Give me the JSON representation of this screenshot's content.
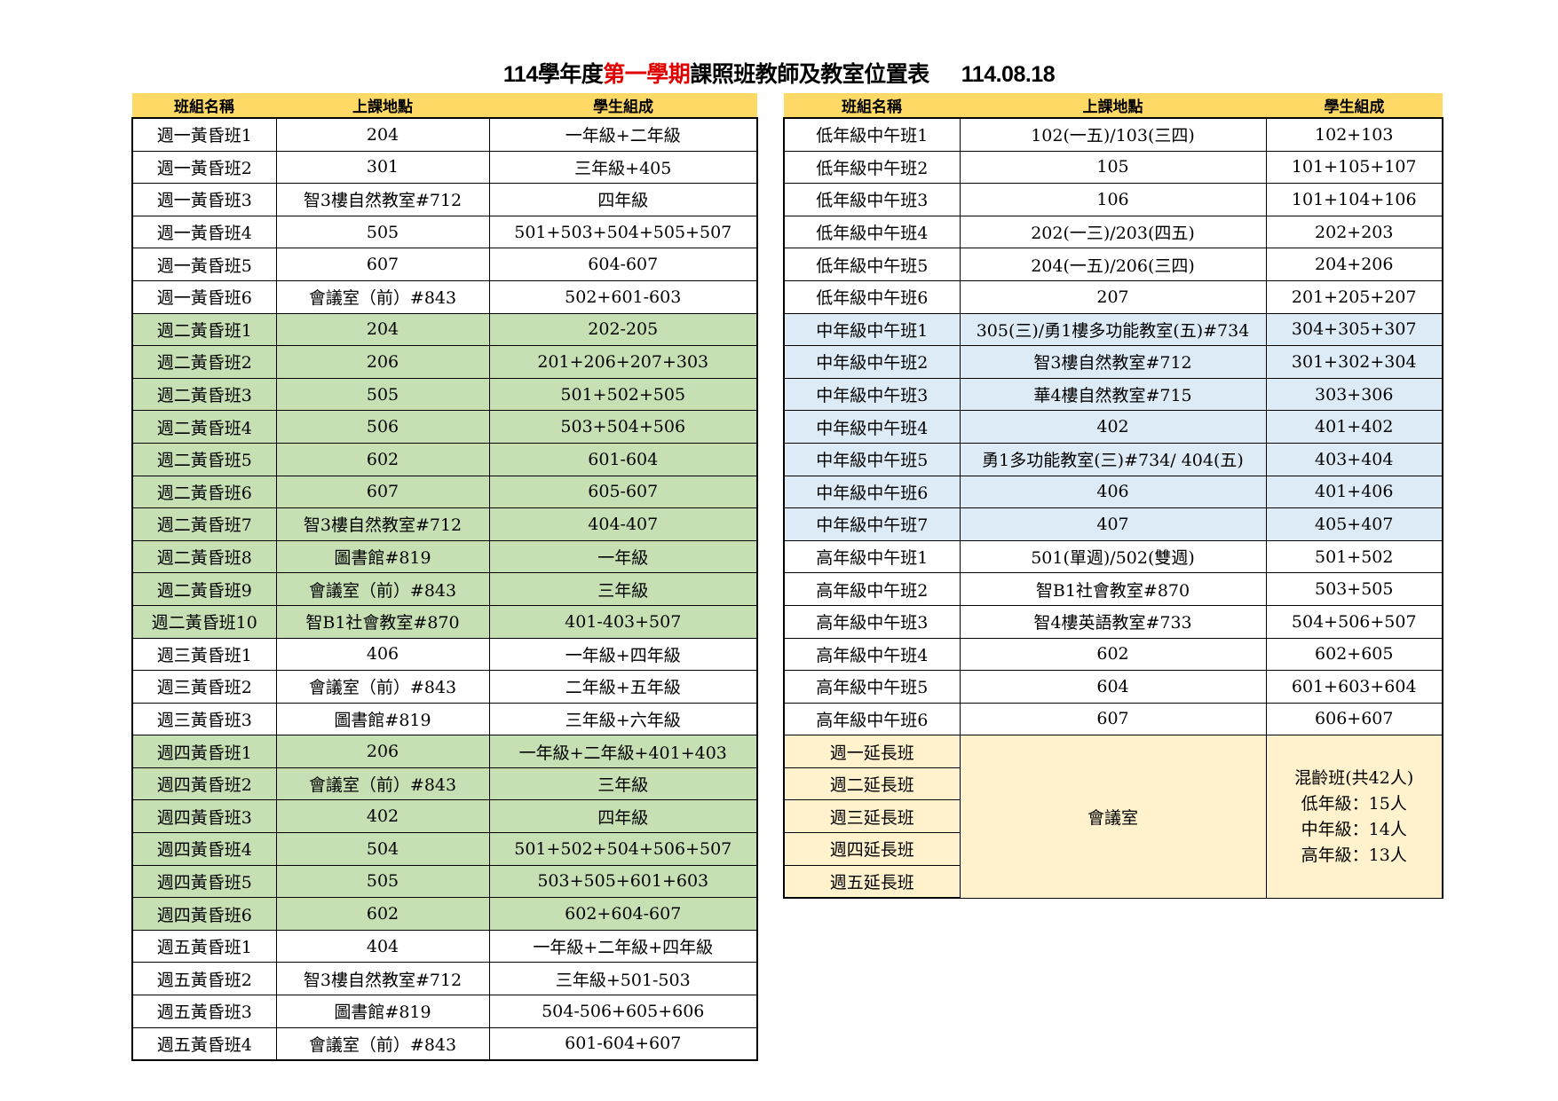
{
  "title": {
    "prefix": "114學年度",
    "highlight": "第一學期",
    "suffix": "課照班教師及教室位置表",
    "date": "114.08.18"
  },
  "colors": {
    "header": "#FFD966",
    "white": "#FFFFFF",
    "green": "#C6E0B4",
    "blue": "#DDEBF7",
    "cream": "#FFF2CC",
    "highlight_text": "#E00000"
  },
  "left_table": {
    "headers": [
      "班組名稱",
      "上課地點",
      "學生組成"
    ],
    "rows": [
      {
        "fill": "white",
        "cells": [
          "週一黃昏班1",
          "204",
          "一年級+二年級"
        ]
      },
      {
        "fill": "white",
        "cells": [
          "週一黃昏班2",
          "301",
          "三年級+405"
        ]
      },
      {
        "fill": "white",
        "cells": [
          "週一黃昏班3",
          "智3樓自然教室#712",
          "四年級"
        ]
      },
      {
        "fill": "white",
        "cells": [
          "週一黃昏班4",
          "505",
          "501+503+504+505+507"
        ]
      },
      {
        "fill": "white",
        "cells": [
          "週一黃昏班5",
          "607",
          "604-607"
        ]
      },
      {
        "fill": "white",
        "cells": [
          "週一黃昏班6",
          "會議室（前）#843",
          "502+601-603"
        ]
      },
      {
        "fill": "green",
        "cells": [
          "週二黃昏班1",
          "204",
          "202-205"
        ]
      },
      {
        "fill": "green",
        "cells": [
          "週二黃昏班2",
          "206",
          "201+206+207+303"
        ]
      },
      {
        "fill": "green",
        "cells": [
          "週二黃昏班3",
          "505",
          "501+502+505"
        ]
      },
      {
        "fill": "green",
        "cells": [
          "週二黃昏班4",
          "506",
          "503+504+506"
        ]
      },
      {
        "fill": "green",
        "cells": [
          "週二黃昏班5",
          "602",
          "601-604"
        ]
      },
      {
        "fill": "green",
        "cells": [
          "週二黃昏班6",
          "607",
          "605-607"
        ]
      },
      {
        "fill": "green",
        "cells": [
          "週二黃昏班7",
          "智3樓自然教室#712",
          "404-407"
        ]
      },
      {
        "fill": "green",
        "cells": [
          "週二黃昏班8",
          "圖書館#819",
          "一年級"
        ]
      },
      {
        "fill": "green",
        "cells": [
          "週二黃昏班9",
          "會議室（前）#843",
          "三年級"
        ]
      },
      {
        "fill": "green",
        "cells": [
          "週二黃昏班10",
          "智B1社會教室#870",
          "401-403+507"
        ]
      },
      {
        "fill": "white",
        "cells": [
          "週三黃昏班1",
          "406",
          "一年級+四年級"
        ]
      },
      {
        "fill": "white",
        "cells": [
          "週三黃昏班2",
          "會議室（前）#843",
          "二年級+五年級"
        ]
      },
      {
        "fill": "white",
        "cells": [
          "週三黃昏班3",
          "圖書館#819",
          "三年級+六年級"
        ]
      },
      {
        "fill": "green",
        "cells": [
          "週四黃昏班1",
          "206",
          "一年級+二年級+401+403"
        ]
      },
      {
        "fill": "green",
        "cells": [
          "週四黃昏班2",
          "會議室（前）#843",
          "三年級"
        ]
      },
      {
        "fill": "green",
        "cells": [
          "週四黃昏班3",
          "402",
          "四年級"
        ]
      },
      {
        "fill": "green",
        "cells": [
          "週四黃昏班4",
          "504",
          "501+502+504+506+507"
        ]
      },
      {
        "fill": "green",
        "cells": [
          "週四黃昏班5",
          "505",
          "503+505+601+603"
        ]
      },
      {
        "fill": "green",
        "cells": [
          "週四黃昏班6",
          "602",
          "602+604-607"
        ]
      },
      {
        "fill": "white",
        "cells": [
          "週五黃昏班1",
          "404",
          "一年級+二年級+四年級"
        ]
      },
      {
        "fill": "white",
        "cells": [
          "週五黃昏班2",
          "智3樓自然教室#712",
          "三年級+501-503"
        ]
      },
      {
        "fill": "white",
        "cells": [
          "週五黃昏班3",
          "圖書館#819",
          "504-506+605+606"
        ]
      },
      {
        "fill": "white",
        "cells": [
          "週五黃昏班4",
          "會議室（前）#843",
          "601-604+607"
        ]
      }
    ]
  },
  "right_table": {
    "headers": [
      "班組名稱",
      "上課地點",
      "學生組成"
    ],
    "rows": [
      {
        "fill": "white",
        "cells": [
          "低年級中午班1",
          "102(一五)/103(三四)",
          "102+103"
        ]
      },
      {
        "fill": "white",
        "cells": [
          "低年級中午班2",
          "105",
          "101+105+107"
        ]
      },
      {
        "fill": "white",
        "cells": [
          "低年級中午班3",
          "106",
          "101+104+106"
        ]
      },
      {
        "fill": "white",
        "cells": [
          "低年級中午班4",
          "202(一三)/203(四五)",
          "202+203"
        ]
      },
      {
        "fill": "white",
        "cells": [
          "低年級中午班5",
          "204(一五)/206(三四)",
          "204+206"
        ]
      },
      {
        "fill": "white",
        "cells": [
          "低年級中午班6",
          "207",
          "201+205+207"
        ]
      },
      {
        "fill": "blue",
        "cells": [
          "中年級中午班1",
          "305(三)/勇1樓多功能教室(五)#734",
          "304+305+307"
        ]
      },
      {
        "fill": "blue",
        "cells": [
          "中年級中午班2",
          "智3樓自然教室#712",
          "301+302+304"
        ]
      },
      {
        "fill": "blue",
        "cells": [
          "中年級中午班3",
          "華4樓自然教室#715",
          "303+306"
        ]
      },
      {
        "fill": "blue",
        "cells": [
          "中年級中午班4",
          "402",
          "401+402"
        ]
      },
      {
        "fill": "blue",
        "cells": [
          "中年級中午班5",
          "勇1多功能教室(三)#734/ 404(五)",
          "403+404"
        ]
      },
      {
        "fill": "blue",
        "cells": [
          "中年級中午班6",
          "406",
          "401+406"
        ]
      },
      {
        "fill": "blue",
        "cells": [
          "中年級中午班7",
          "407",
          "405+407"
        ]
      },
      {
        "fill": "white",
        "cells": [
          "高年級中午班1",
          "501(單週)/502(雙週)",
          "501+502"
        ]
      },
      {
        "fill": "white",
        "cells": [
          "高年級中午班2",
          "智B1社會教室#870",
          "503+505"
        ]
      },
      {
        "fill": "white",
        "cells": [
          "高年級中午班3",
          "智4樓英語教室#733",
          "504+506+507"
        ]
      },
      {
        "fill": "white",
        "cells": [
          "高年級中午班4",
          "602",
          "602+605"
        ]
      },
      {
        "fill": "white",
        "cells": [
          "高年級中午班5",
          "604",
          "601+603+604"
        ]
      },
      {
        "fill": "white",
        "cells": [
          "高年級中午班6",
          "607",
          "606+607"
        ]
      }
    ],
    "extended": {
      "fill": "cream",
      "classes": [
        "週一延長班",
        "週二延長班",
        "週三延長班",
        "週四延長班",
        "週五延長班"
      ],
      "location": "會議室",
      "composition": [
        "混齡班(共42人)",
        "低年級：15人",
        "中年級：14人",
        "高年級：13人"
      ]
    }
  }
}
